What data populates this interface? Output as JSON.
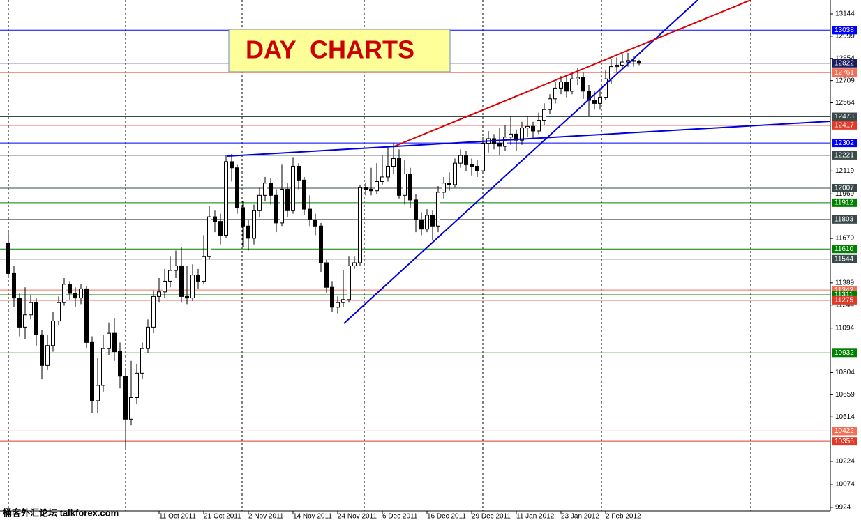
{
  "chart_data": {
    "type": "candlestick",
    "annotation": "DAY  CHARTS",
    "watermark": "桶客外汇论坛 talkforex.com",
    "ylim": [
      9869,
      13235
    ],
    "yticks": [
      13144,
      12999,
      12854,
      12709,
      12564,
      12119,
      11969,
      11679,
      11389,
      11244,
      11094,
      10804,
      10659,
      10514,
      10224,
      10074,
      9924
    ],
    "categories": [
      null,
      null,
      null,
      null,
      null,
      null,
      null,
      null,
      null,
      null,
      null,
      null,
      null,
      null,
      null,
      null,
      null,
      null,
      null,
      null,
      null,
      null,
      null,
      null,
      null,
      null,
      null,
      "11 Oct 2011",
      null,
      null,
      null,
      null,
      null,
      null,
      null,
      "21 Oct 2011",
      null,
      null,
      null,
      null,
      null,
      null,
      null,
      "2 Nov 2011",
      null,
      null,
      null,
      null,
      null,
      null,
      null,
      "14 Nov 2011",
      null,
      null,
      null,
      null,
      null,
      null,
      null,
      "24 Nov 2011",
      null,
      null,
      null,
      null,
      null,
      null,
      null,
      "6 Dec 2011",
      null,
      null,
      null,
      null,
      null,
      null,
      null,
      "16 Dec 2011",
      null,
      null,
      null,
      null,
      null,
      null,
      null,
      "29 Dec 2011",
      null,
      null,
      null,
      null,
      null,
      null,
      null,
      "11 Jan 2012",
      null,
      null,
      null,
      null,
      null,
      null,
      null,
      "23 Jan 2012",
      null,
      null,
      null,
      null,
      null,
      null,
      null,
      "2 Feb 2012",
      null,
      null,
      null,
      null,
      null,
      null
    ],
    "open": [
      11650,
      11450,
      11290,
      11100,
      11180,
      11260,
      11050,
      10850,
      10980,
      11140,
      11260,
      11380,
      11320,
      11290,
      11350,
      11000,
      10620,
      10720,
      10960,
      11060,
      10940,
      10780,
      10500,
      10640,
      10800,
      10960,
      11100,
      11300,
      11330,
      11400,
      11470,
      11500,
      11300,
      11290,
      11440,
      11400,
      11560,
      11820,
      11790,
      11700,
      12180,
      12140,
      11880,
      11760,
      11680,
      11860,
      11960,
      12040,
      11960,
      11780,
      12000,
      11860,
      12150,
      12060,
      11870,
      11800,
      11760,
      11520,
      11360,
      11230,
      11260,
      11280,
      11500,
      11520,
      12010,
      12000,
      11990,
      12050,
      12080,
      12150,
      12200,
      11960,
      12100,
      11930,
      11800,
      11740,
      11830,
      11760,
      11980,
      12040,
      12030,
      12170,
      12220,
      12160,
      12150,
      12120,
      12300,
      12330,
      12300,
      12280,
      12340,
      12360,
      12320,
      12400,
      12410,
      12380,
      12450,
      12520,
      12590,
      12660,
      12700,
      12640,
      12720,
      12730,
      12640,
      12580,
      12560,
      12600,
      12720,
      12800,
      12810,
      12830,
      12840,
      12835
    ],
    "high": [
      11720,
      11500,
      11320,
      11360,
      11310,
      11290,
      11080,
      11050,
      11200,
      11300,
      11420,
      11400,
      11360,
      11380,
      11370,
      11040,
      10900,
      11050,
      11130,
      11160,
      11000,
      10820,
      10880,
      10860,
      11000,
      11150,
      11340,
      11420,
      11480,
      11560,
      11600,
      11620,
      11500,
      11510,
      11480,
      11700,
      11890,
      11860,
      11840,
      12220,
      12230,
      12160,
      11920,
      11800,
      11900,
      12010,
      12080,
      12070,
      12000,
      12160,
      12040,
      12210,
      12170,
      12080,
      11960,
      11840,
      11780,
      11540,
      11400,
      11300,
      11470,
      11560,
      11560,
      12030,
      12040,
      12140,
      12170,
      12220,
      12280,
      12300,
      12260,
      12190,
      12140,
      11970,
      11850,
      11870,
      11860,
      12020,
      12080,
      12110,
      12200,
      12260,
      12250,
      12200,
      12190,
      12340,
      12380,
      12360,
      12400,
      12420,
      12480,
      12390,
      12440,
      12480,
      12440,
      12500,
      12560,
      12620,
      12700,
      12740,
      12740,
      12760,
      12790,
      12760,
      12680,
      12640,
      12660,
      12780,
      12850,
      12860,
      12880,
      12890,
      12870,
      12845
    ],
    "low": [
      11420,
      11230,
      11040,
      11020,
      11150,
      10980,
      10760,
      10820,
      10940,
      11110,
      11240,
      11280,
      11230,
      11250,
      10960,
      10540,
      10540,
      10680,
      10920,
      10880,
      10700,
      10320,
      10460,
      10600,
      10760,
      10930,
      11060,
      11260,
      11290,
      11360,
      11420,
      11260,
      11250,
      11270,
      11350,
      11380,
      11540,
      11720,
      11640,
      11680,
      12050,
      11840,
      11620,
      11600,
      11640,
      11820,
      11920,
      11900,
      11720,
      11760,
      11820,
      11840,
      12000,
      11830,
      11760,
      11700,
      11460,
      11320,
      11200,
      11190,
      11230,
      11260,
      11480,
      11500,
      11960,
      11960,
      11970,
      12030,
      12050,
      12100,
      11940,
      11900,
      11880,
      11720,
      11700,
      11720,
      11670,
      11720,
      11940,
      11990,
      12010,
      12140,
      12120,
      12090,
      12080,
      12100,
      12240,
      12260,
      12220,
      12250,
      12290,
      12250,
      12290,
      12340,
      12330,
      12360,
      12420,
      12490,
      12560,
      12620,
      12600,
      12620,
      12680,
      12590,
      12480,
      12520,
      12520,
      12580,
      12690,
      12760,
      12790,
      12800,
      12800,
      12810
    ],
    "close": [
      11450,
      11290,
      11100,
      11180,
      11260,
      11050,
      10850,
      10980,
      11140,
      11260,
      11380,
      11320,
      11290,
      11350,
      11000,
      10620,
      10720,
      10960,
      11060,
      10940,
      10780,
      10500,
      10640,
      10800,
      10960,
      11100,
      11300,
      11330,
      11400,
      11470,
      11500,
      11300,
      11290,
      11440,
      11400,
      11560,
      11820,
      11790,
      11700,
      12180,
      12140,
      11880,
      11760,
      11680,
      11860,
      11960,
      12040,
      11960,
      11780,
      12000,
      11860,
      12150,
      12060,
      11870,
      11800,
      11760,
      11520,
      11360,
      11230,
      11260,
      11280,
      11500,
      11520,
      12010,
      12000,
      11990,
      12050,
      12080,
      12150,
      12200,
      11960,
      12100,
      11930,
      11800,
      11740,
      11830,
      11760,
      11980,
      12040,
      12030,
      12170,
      12220,
      12160,
      12150,
      12120,
      12300,
      12330,
      12300,
      12280,
      12340,
      12360,
      12320,
      12400,
      12410,
      12380,
      12450,
      12520,
      12590,
      12660,
      12700,
      12640,
      12720,
      12730,
      12640,
      12580,
      12560,
      12600,
      12720,
      12800,
      12810,
      12830,
      12840,
      12835,
      12822
    ],
    "up_color": "#ffffff",
    "down_color": "#000000",
    "levels": [
      {
        "value": 13038,
        "color": "#0000ff"
      },
      {
        "value": 12822,
        "color": "#1a1a5e"
      },
      {
        "value": 12761,
        "color": "#f07058"
      },
      {
        "value": 12473,
        "color": "#3a4a4a"
      },
      {
        "value": 12417,
        "color": "#e03a28"
      },
      {
        "value": 12302,
        "color": "#0000ff"
      },
      {
        "value": 12221,
        "color": "#3a4a4a"
      },
      {
        "value": 12007,
        "color": "#3a4a4a"
      },
      {
        "value": 11912,
        "color": "#008000"
      },
      {
        "value": 11803,
        "color": "#3a4a4a"
      },
      {
        "value": 11610,
        "color": "#008000"
      },
      {
        "value": 11544,
        "color": "#3a4a4a"
      },
      {
        "value": 11342,
        "color": "#f07058"
      },
      {
        "value": 11311,
        "color": "#008000"
      },
      {
        "value": 11275,
        "color": "#e03a28"
      },
      {
        "value": 10932,
        "color": "#008000"
      },
      {
        "value": 10422,
        "color": "#f07058"
      },
      {
        "value": 10355,
        "color": "#e03a28"
      }
    ]
  }
}
